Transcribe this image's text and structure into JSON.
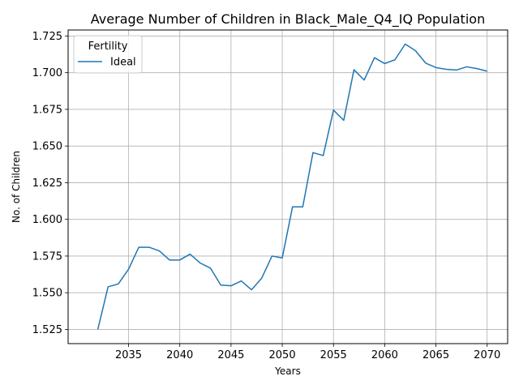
{
  "chart_data": {
    "type": "line",
    "title": "Average Number of Children in Black_Male_Q4_IQ Population",
    "xlabel": "Years",
    "ylabel": "No. of Children",
    "xlim": [
      2029.1,
      2072.0
    ],
    "ylim": [
      1.5153,
      1.7291
    ],
    "xticks": [
      2035,
      2040,
      2045,
      2050,
      2055,
      2060,
      2065,
      2070
    ],
    "yticks": [
      1.525,
      1.55,
      1.575,
      1.6,
      1.625,
      1.65,
      1.675,
      1.7,
      1.725
    ],
    "xtick_labels": [
      "2035",
      "2040",
      "2045",
      "2050",
      "2055",
      "2060",
      "2065",
      "2070"
    ],
    "ytick_labels": [
      "1.525",
      "1.550",
      "1.575",
      "1.600",
      "1.625",
      "1.650",
      "1.675",
      "1.700",
      "1.725"
    ],
    "grid": true,
    "legend": {
      "title": "Fertility",
      "position": "upper-left"
    },
    "colors": {
      "series": "#1f77b4",
      "grid": "#b0b0b0"
    },
    "series": [
      {
        "name": "Ideal",
        "x": [
          2032,
          2033,
          2034,
          2035,
          2036,
          2037,
          2038,
          2039,
          2040,
          2041,
          2042,
          2043,
          2044,
          2045,
          2046,
          2047,
          2048,
          2049,
          2050,
          2051,
          2052,
          2053,
          2054,
          2055,
          2056,
          2057,
          2058,
          2059,
          2060,
          2061,
          2062,
          2063,
          2064,
          2065,
          2066,
          2067,
          2068,
          2069,
          2070
        ],
        "y": [
          1.525,
          1.554,
          1.556,
          1.566,
          1.581,
          1.581,
          1.5785,
          1.5723,
          1.5723,
          1.5763,
          1.5702,
          1.5667,
          1.5552,
          1.5547,
          1.558,
          1.552,
          1.56,
          1.575,
          1.5737,
          1.6085,
          1.6085,
          1.6455,
          1.6435,
          1.6745,
          1.6675,
          1.702,
          1.695,
          1.7102,
          1.7062,
          1.7088,
          1.7195,
          1.715,
          1.7065,
          1.7035,
          1.7023,
          1.7018,
          1.704,
          1.7028,
          1.701
        ]
      }
    ]
  }
}
